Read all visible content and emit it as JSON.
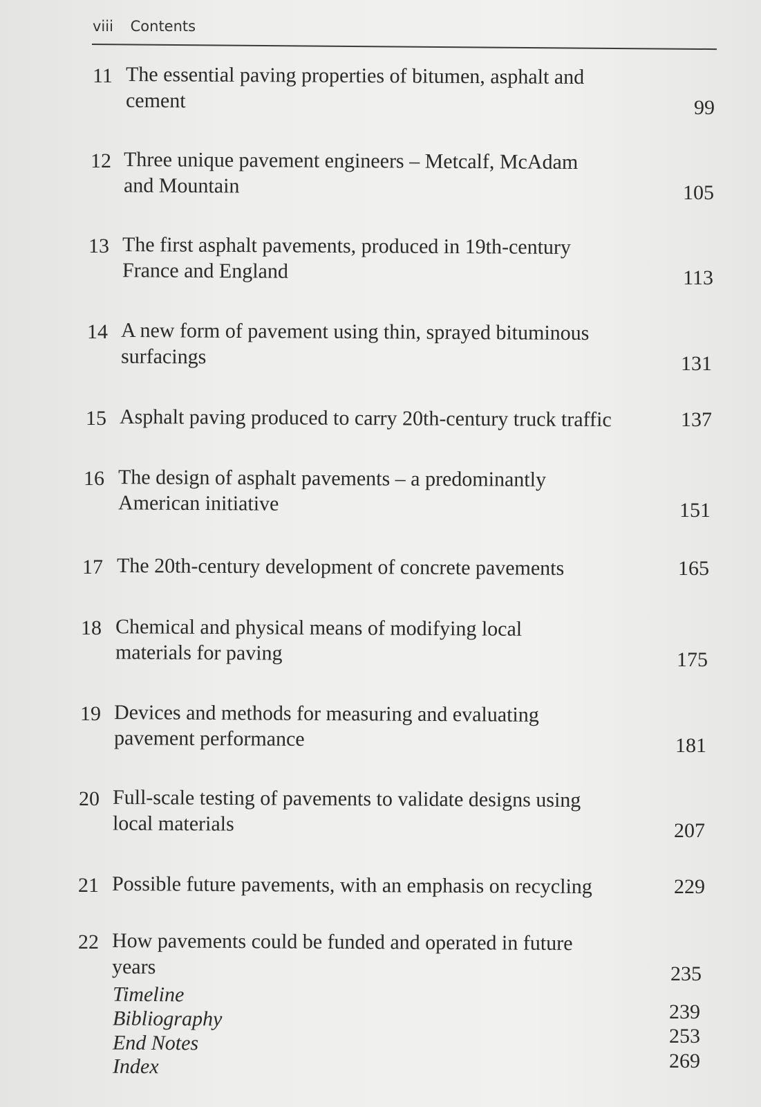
{
  "header": {
    "page_number": "viii",
    "title": "Contents"
  },
  "entries": [
    {
      "number": "11",
      "lines": [
        "The essential paving properties of bitumen, asphalt and",
        "cement"
      ],
      "page": "99"
    },
    {
      "number": "12",
      "lines": [
        "Three unique pavement engineers – Metcalf, McAdam",
        "and Mountain"
      ],
      "page": "105"
    },
    {
      "number": "13",
      "lines": [
        "The first asphalt pavements, produced in 19th-century",
        "France and England"
      ],
      "page": "113"
    },
    {
      "number": "14",
      "lines": [
        "A new form of pavement using thin, sprayed bituminous",
        "surfacings"
      ],
      "page": "131"
    },
    {
      "number": "15",
      "lines": [
        "Asphalt paving produced to carry 20th-century truck traffic"
      ],
      "page": "137"
    },
    {
      "number": "16",
      "lines": [
        "The design of asphalt pavements – a predominantly",
        "American initiative"
      ],
      "page": "151"
    },
    {
      "number": "17",
      "lines": [
        "The 20th-century development of concrete pavements"
      ],
      "page": "165"
    },
    {
      "number": "18",
      "lines": [
        "Chemical and physical means of modifying local",
        "materials for paving"
      ],
      "page": "175"
    },
    {
      "number": "19",
      "lines": [
        "Devices and methods for measuring and evaluating",
        "pavement performance"
      ],
      "page": "181"
    },
    {
      "number": "20",
      "lines": [
        "Full-scale testing of pavements to validate designs using",
        "local materials"
      ],
      "page": "207"
    },
    {
      "number": "21",
      "lines": [
        "Possible future pavements, with an emphasis on recycling"
      ],
      "page": "229"
    },
    {
      "number": "22",
      "lines": [
        "How pavements could be funded and operated in future",
        "years"
      ],
      "page": "235"
    }
  ],
  "back_matter": [
    {
      "title": "Timeline",
      "page": "239"
    },
    {
      "title": "Bibliography",
      "page": "253"
    },
    {
      "title": "End Notes",
      "page": "269"
    },
    {
      "title": "Index",
      "page": ""
    }
  ]
}
